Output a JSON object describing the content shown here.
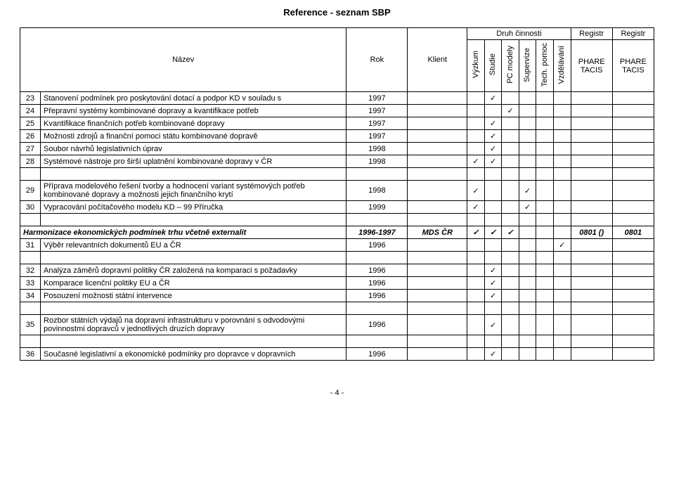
{
  "page_title": "Reference - seznam SBP",
  "footer": "- 4 -",
  "tick": "✓",
  "header": {
    "nazev": "Název",
    "rok": "Rok",
    "klient": "Klient",
    "druh": "Druh činnosti",
    "registr": "Registr",
    "phare_tacis": "PHARE TACIS",
    "acts": [
      "Výzkum",
      "Studie",
      "PC modely",
      "Supervize",
      "Tech. pomoc",
      "Vzdělávání"
    ]
  },
  "rows": [
    {
      "type": "data",
      "num": "23",
      "name": "Stanovení podmínek pro poskytování dotací a podpor KD v souladu s",
      "rok": "1997",
      "klient": "",
      "acts": [
        "",
        "✓",
        "",
        "",
        "",
        ""
      ],
      "r1": "",
      "r2": ""
    },
    {
      "type": "data",
      "num": "24",
      "name": "Přepravní systémy kombinované dopravy a kvantifikace potřeb",
      "rok": "1997",
      "klient": "",
      "acts": [
        "",
        "",
        "✓",
        "",
        "",
        ""
      ],
      "r1": "",
      "r2": ""
    },
    {
      "type": "data",
      "num": "25",
      "name": "Kvantifikace finančních potřeb kombinované dopravy",
      "rok": "1997",
      "klient": "",
      "acts": [
        "",
        "✓",
        "",
        "",
        "",
        ""
      ],
      "r1": "",
      "r2": ""
    },
    {
      "type": "data",
      "num": "26",
      "name": "Možnosti zdrojů a finanční pomoci státu kombinované dopravě",
      "rok": "1997",
      "klient": "",
      "acts": [
        "",
        "✓",
        "",
        "",
        "",
        ""
      ],
      "r1": "",
      "r2": ""
    },
    {
      "type": "data",
      "num": "27",
      "name": "Soubor návrhů legislativních úprav",
      "rok": "1998",
      "klient": "",
      "acts": [
        "",
        "✓",
        "",
        "",
        "",
        ""
      ],
      "r1": "",
      "r2": ""
    },
    {
      "type": "data",
      "num": "28",
      "name": "Systémové nástroje pro širší uplatnění kombinované dopravy v ČR",
      "rok": "1998",
      "klient": "",
      "acts": [
        "✓",
        "✓",
        "",
        "",
        "",
        ""
      ],
      "r1": "",
      "r2": ""
    },
    {
      "type": "spacer"
    },
    {
      "type": "data",
      "num": "29",
      "name": "Příprava modelového řešení tvorby a hodnocení variant systémových potřeb kombinované dopravy a možnosti jejich finančního krytí",
      "rok": "1998",
      "klient": "",
      "acts": [
        "✓",
        "",
        "",
        "✓",
        "",
        ""
      ],
      "r1": "",
      "r2": ""
    },
    {
      "type": "data",
      "num": "30",
      "name": "Vypracování počítačového modelu KD – 99 Příručka",
      "rok": "1999",
      "klient": "",
      "acts": [
        "✓",
        "",
        "",
        "✓",
        "",
        ""
      ],
      "r1": "",
      "r2": ""
    },
    {
      "type": "spacer"
    },
    {
      "type": "section",
      "name": "Harmonizace ekonomických podmínek trhu včetně externalit",
      "rok": "1996-1997",
      "klient": "MDS ČR",
      "acts": [
        "✓",
        "✓",
        "✓",
        "",
        "",
        ""
      ],
      "r1": "0801 ()",
      "r2": "0801"
    },
    {
      "type": "data",
      "num": "31",
      "name": "Výběr relevantních dokumentů EU a ČR",
      "rok": "1996",
      "klient": "",
      "acts": [
        "",
        "",
        "",
        "",
        "",
        "✓"
      ],
      "r1": "",
      "r2": ""
    },
    {
      "type": "spacer"
    },
    {
      "type": "data",
      "num": "32",
      "name": "Analýza záměrů dopravní politiky ČR založená na komparaci s  požadavky",
      "rok": "1996",
      "klient": "",
      "acts": [
        "",
        "✓",
        "",
        "",
        "",
        ""
      ],
      "r1": "",
      "r2": ""
    },
    {
      "type": "data",
      "num": "33",
      "name": "Komparace licenční politiky EU a ČR",
      "rok": "1996",
      "klient": "",
      "acts": [
        "",
        "✓",
        "",
        "",
        "",
        ""
      ],
      "r1": "",
      "r2": ""
    },
    {
      "type": "data",
      "num": "34",
      "name": "Posouzení možnosti státní intervence",
      "rok": "1996",
      "klient": "",
      "acts": [
        "",
        "✓",
        "",
        "",
        "",
        ""
      ],
      "r1": "",
      "r2": ""
    },
    {
      "type": "spacer"
    },
    {
      "type": "data",
      "num": "35",
      "name": "Rozbor státních výdajů na dopravní infrastrukturu v porovnání s  odvodovými povinnostmi dopravců v jednotlivých druzích dopravy",
      "rok": "1996",
      "klient": "",
      "acts": [
        "",
        "✓",
        "",
        "",
        "",
        ""
      ],
      "r1": "",
      "r2": ""
    },
    {
      "type": "spacer"
    },
    {
      "type": "data",
      "num": "36",
      "name": "Současné legislativní a ekonomické podmínky pro dopravce v  dopravních",
      "rok": "1996",
      "klient": "",
      "acts": [
        "",
        "✓",
        "",
        "",
        "",
        ""
      ],
      "r1": "",
      "r2": ""
    }
  ]
}
